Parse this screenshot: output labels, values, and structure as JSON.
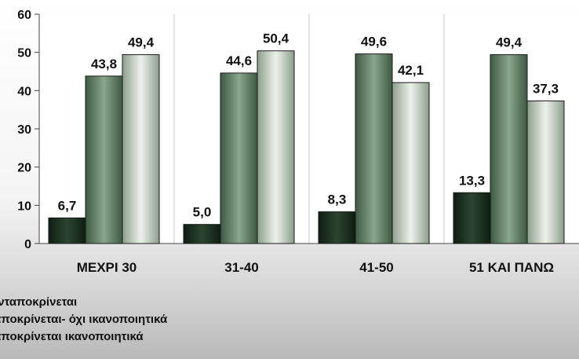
{
  "chart_data": {
    "type": "bar",
    "categories": [
      "ΜΕΧΡΙ 30",
      "31-40",
      "41-50",
      "51 ΚΑΙ ΠΑΝΩ"
    ],
    "series": [
      {
        "name": "δεν ανταποκρίνεται",
        "values": [
          6.7,
          5.0,
          8.3,
          13.3
        ],
        "color": "#1e3222",
        "label_text": [
          "6,7",
          "5,0",
          "8,3",
          "13,3"
        ]
      },
      {
        "name": "ανταποκρίνεται- όχι ικανοποιητικά",
        "values": [
          43.8,
          44.6,
          49.6,
          49.4
        ],
        "color": "#5e7f63",
        "label_text": [
          "43,8",
          "44,6",
          "49,6",
          "49,4"
        ]
      },
      {
        "name": "ανταποκρίνεται ικανοποιητικά",
        "values": [
          49.4,
          50.4,
          42.1,
          37.3
        ],
        "color": "#b7c4b4",
        "label_text": [
          "49,4",
          "50,4",
          "42,1",
          "37,3"
        ]
      }
    ],
    "y_ticks": [
      "0",
      "10",
      "20",
      "30",
      "40",
      "50",
      "60"
    ],
    "ylim": [
      0,
      60
    ],
    "grid": false,
    "legend_position": "bottom-left",
    "title": "",
    "xlabel": "",
    "ylabel": ""
  },
  "legend": {
    "items": [
      "ανταποκρίνεται",
      "ιαποκρίνεται- όχι ικανοποιητικά",
      "ιαποκρίνεται ικανοποιητικά"
    ]
  }
}
